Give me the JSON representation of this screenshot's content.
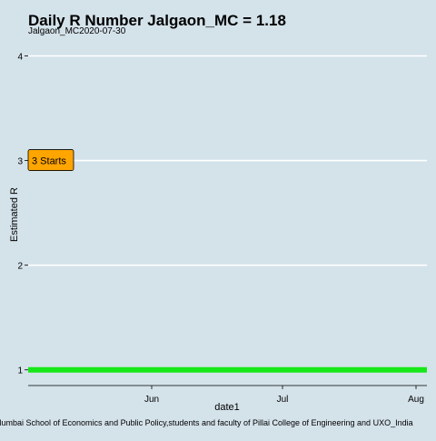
{
  "chart_data": {
    "type": "line",
    "title": "Daily R Number Jalgaon_MC = 1.18",
    "subtitle": "Jalgaon_MC2020-07-30",
    "xlabel": "date1",
    "ylabel": "Estimated R",
    "caption": "Mumbai School of Economics and Public Policy,students and faculty of Pillai College of Engineering and UXO_India",
    "x_ticks": [
      "Jun",
      "Jul",
      "Aug"
    ],
    "y_ticks": [
      1,
      2,
      3,
      4
    ],
    "ylim": [
      0.85,
      4.1
    ],
    "grid": true,
    "annotation": {
      "label": "3 Starts",
      "y": 3
    },
    "reference_line": {
      "y": 1,
      "color": "#17e817"
    },
    "colors": {
      "background": "#d4e2ea",
      "gridline": "#ffffff",
      "annotation_fill": "#ffa500",
      "reference_line": "#17e817"
    }
  }
}
